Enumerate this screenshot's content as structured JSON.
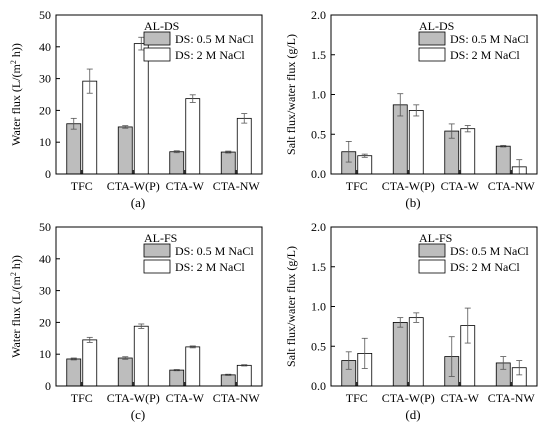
{
  "chart_data": [
    {
      "type": "bar",
      "panel_label": "(a)",
      "annotation": "AL-DS",
      "categories": [
        "TFC",
        "CTA-W(P)",
        "CTA-W",
        "CTA-NW"
      ],
      "series": [
        {
          "name": "DS: 0.5 M NaCl",
          "color": "#bdbdbd",
          "values": [
            15.8,
            14.8,
            7.0,
            6.9
          ],
          "errors": [
            1.7,
            0.4,
            0.3,
            0.3
          ]
        },
        {
          "name": "DS: 2 M NaCl",
          "color": "#ffffff",
          "values": [
            29.2,
            41.0,
            23.7,
            17.5
          ],
          "errors": [
            3.8,
            2.0,
            1.2,
            1.5
          ]
        }
      ],
      "ylabel": "Water flux (L/(m",
      "ylabel_sup": "2",
      "ylabel_end": " h))",
      "ylim": [
        0,
        50
      ],
      "yticks": [
        "0",
        "10",
        "20",
        "30",
        "40",
        "50"
      ],
      "legend": "top-right"
    },
    {
      "type": "bar",
      "panel_label": "(b)",
      "annotation": "AL-DS",
      "categories": [
        "TFC",
        "CTA-W(P)",
        "CTA-W",
        "CTA-NW"
      ],
      "series": [
        {
          "name": "DS: 0.5 M NaCl",
          "color": "#bdbdbd",
          "values": [
            0.28,
            0.87,
            0.54,
            0.35
          ],
          "errors": [
            0.13,
            0.14,
            0.09,
            0.01
          ]
        },
        {
          "name": "DS: 2 M NaCl",
          "color": "#ffffff",
          "values": [
            0.23,
            0.8,
            0.57,
            0.09
          ],
          "errors": [
            0.02,
            0.07,
            0.04,
            0.09
          ]
        }
      ],
      "ylabel": "Salt flux/water flux (g/L)",
      "ylabel_sup": "",
      "ylabel_end": "",
      "ylim": [
        0,
        2.0
      ],
      "yticks": [
        "0.0",
        "0.5",
        "1.0",
        "1.5",
        "2.0"
      ],
      "legend": "top-right"
    },
    {
      "type": "bar",
      "panel_label": "(c)",
      "annotation": "AL-FS",
      "categories": [
        "TFC",
        "CTA-W(P)",
        "CTA-W",
        "CTA-NW"
      ],
      "series": [
        {
          "name": "DS: 0.5 M NaCl",
          "color": "#bdbdbd",
          "values": [
            8.5,
            8.8,
            5.0,
            3.5
          ],
          "errors": [
            0.3,
            0.4,
            0.2,
            0.2
          ]
        },
        {
          "name": "DS: 2 M NaCl",
          "color": "#ffffff",
          "values": [
            14.5,
            18.8,
            12.3,
            6.5
          ],
          "errors": [
            0.8,
            0.7,
            0.3,
            0.2
          ]
        }
      ],
      "ylabel": "Water flux (L/(m",
      "ylabel_sup": "2",
      "ylabel_end": " h))",
      "ylim": [
        0,
        50
      ],
      "yticks": [
        "0",
        "10",
        "20",
        "30",
        "40",
        "50"
      ],
      "legend": "top-right"
    },
    {
      "type": "bar",
      "panel_label": "(d)",
      "annotation": "AL-FS",
      "categories": [
        "TFC",
        "CTA-W(P)",
        "CTA-W",
        "CTA-NW"
      ],
      "series": [
        {
          "name": "DS: 0.5 M NaCl",
          "color": "#bdbdbd",
          "values": [
            0.32,
            0.8,
            0.37,
            0.29
          ],
          "errors": [
            0.11,
            0.06,
            0.25,
            0.08
          ]
        },
        {
          "name": "DS: 2 M NaCl",
          "color": "#ffffff",
          "values": [
            0.41,
            0.86,
            0.76,
            0.23
          ],
          "errors": [
            0.19,
            0.06,
            0.22,
            0.09
          ]
        }
      ],
      "ylabel": "Salt flux/water flux (g/L)",
      "ylabel_sup": "",
      "ylabel_end": "",
      "ylim": [
        0,
        2.0
      ],
      "yticks": [
        "0.0",
        "0.5",
        "1.0",
        "1.5",
        "2.0"
      ],
      "legend": "top-right"
    }
  ]
}
